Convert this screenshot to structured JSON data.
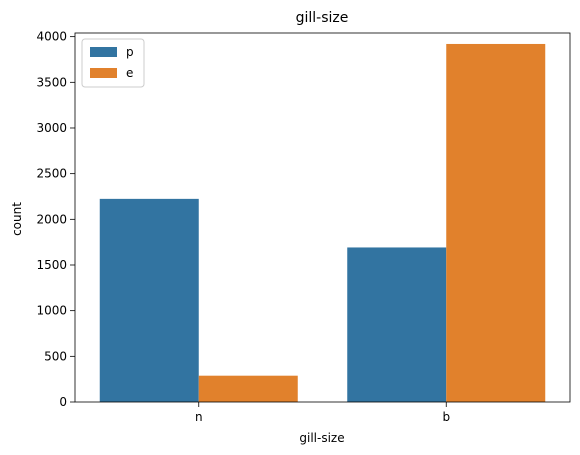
{
  "chart_data": {
    "type": "bar",
    "title": "gill-size",
    "xlabel": "gill-size",
    "ylabel": "count",
    "categories": [
      "n",
      "b"
    ],
    "series": [
      {
        "name": "p",
        "values": [
          2224,
          1692
        ],
        "color": "#3274a1"
      },
      {
        "name": "e",
        "values": [
          288,
          3920
        ],
        "color": "#e1812c"
      }
    ],
    "ylim": [
      0,
      4040
    ],
    "yticks": [
      0,
      500,
      1000,
      1500,
      2000,
      2500,
      3000,
      3500,
      4000
    ],
    "grid": false,
    "legend_position": "top-left"
  }
}
